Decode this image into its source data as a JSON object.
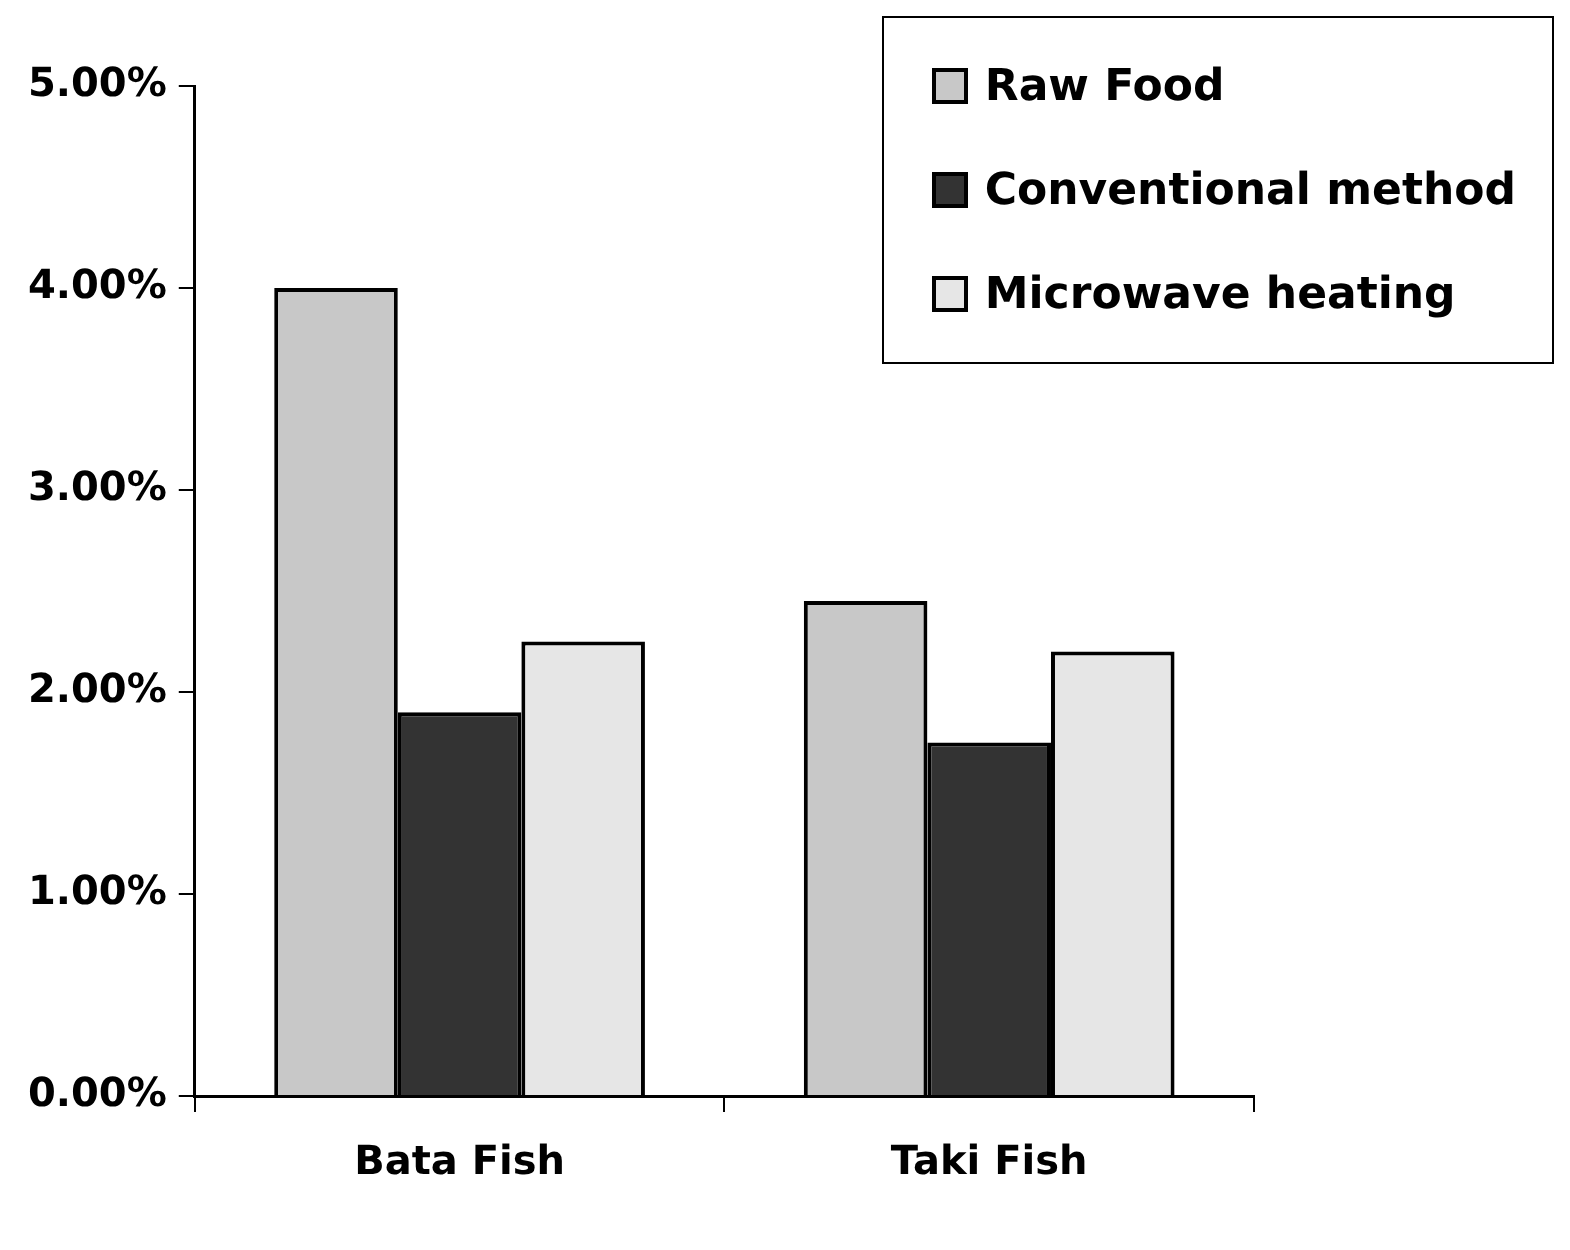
{
  "chart_data": {
    "type": "bar",
    "categories": [
      "Bata Fish",
      "Taki Fish"
    ],
    "series": [
      {
        "name": "Raw Food",
        "color": "#c8c8c8",
        "values": [
          4.0,
          2.45
        ]
      },
      {
        "name": "Conventional method",
        "color": "#333333",
        "values": [
          1.9,
          1.75
        ]
      },
      {
        "name": "Microwave heating",
        "color": "#e6e6e6",
        "values": [
          2.25,
          2.2
        ]
      }
    ],
    "ylim": [
      0,
      5
    ],
    "yticks": [
      {
        "value": 0,
        "label": "0.00%"
      },
      {
        "value": 1,
        "label": "1.00%"
      },
      {
        "value": 2,
        "label": "2.00%"
      },
      {
        "value": 3,
        "label": "3.00%"
      },
      {
        "value": 4,
        "label": "4.00%"
      },
      {
        "value": 5,
        "label": "5.00%"
      }
    ],
    "grid": false,
    "legend": "top right"
  }
}
